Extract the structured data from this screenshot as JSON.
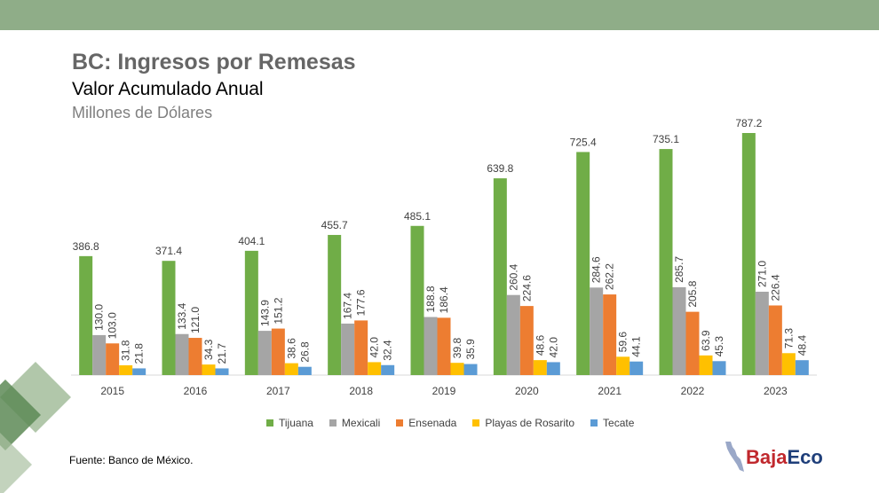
{
  "header": {
    "title": "BC: Ingresos por Remesas",
    "subtitle": "Valor Acumulado Anual",
    "units": "Millones de Dólares"
  },
  "source": "Fuente: Banco de México.",
  "logo": {
    "part1": "Baja",
    "part2": "Eco"
  },
  "chart_data": {
    "type": "bar",
    "title": "",
    "xlabel": "",
    "ylabel": "",
    "ylim": [
      0,
      850
    ],
    "grid": false,
    "legend_position": "bottom",
    "categories": [
      "2015",
      "2016",
      "2017",
      "2018",
      "2019",
      "2020",
      "2021",
      "2022",
      "2023"
    ],
    "series": [
      {
        "name": "Tijuana",
        "color": "#70ad47",
        "values": [
          386.8,
          371.4,
          404.1,
          455.7,
          485.1,
          639.8,
          725.4,
          735.1,
          787.2
        ]
      },
      {
        "name": "Mexicali",
        "color": "#a5a5a5",
        "values": [
          130.0,
          133.4,
          143.9,
          167.4,
          188.8,
          260.4,
          284.6,
          285.7,
          271.0
        ]
      },
      {
        "name": "Ensenada",
        "color": "#ed7d31",
        "values": [
          103.0,
          121.0,
          151.2,
          177.6,
          186.4,
          224.6,
          262.2,
          205.8,
          226.4
        ]
      },
      {
        "name": "Playas de Rosarito",
        "color": "#ffc000",
        "values": [
          31.8,
          34.3,
          38.6,
          42.0,
          39.8,
          48.6,
          59.6,
          63.9,
          71.3
        ]
      },
      {
        "name": "Tecate",
        "color": "#5b9bd5",
        "values": [
          21.8,
          21.7,
          26.8,
          32.4,
          35.9,
          42.0,
          44.1,
          45.3,
          48.4
        ]
      }
    ]
  }
}
